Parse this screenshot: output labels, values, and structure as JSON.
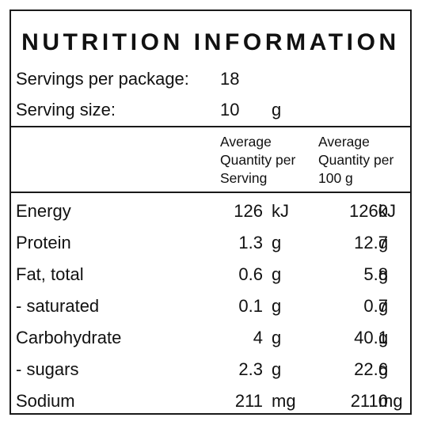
{
  "title": "NUTRITION INFORMATION",
  "servings": {
    "label": "Servings per package:",
    "value": "18"
  },
  "serving_size": {
    "label": "Serving size:",
    "value": "10",
    "unit": "g"
  },
  "columns": {
    "per_serving": [
      "Average",
      "Quantity per",
      "Serving"
    ],
    "per_100g": [
      "Average",
      "Quantity per",
      "100 g"
    ]
  },
  "rows": [
    {
      "label": "Energy",
      "serving": "126",
      "serving_unit": "kJ",
      "per100": "1260",
      "per100_unit": "kJ"
    },
    {
      "label": "Protein",
      "serving": "1.3",
      "serving_unit": "g",
      "per100": "12.7",
      "per100_unit": "g"
    },
    {
      "label": "Fat, total",
      "serving": "0.6",
      "serving_unit": "g",
      "per100": "5.8",
      "per100_unit": "g"
    },
    {
      "label": "- saturated",
      "serving": "0.1",
      "serving_unit": "g",
      "per100": "0.7",
      "per100_unit": "g"
    },
    {
      "label": "Carbohydrate",
      "serving": "4",
      "serving_unit": "g",
      "per100": "40.1",
      "per100_unit": "g"
    },
    {
      "label": "- sugars",
      "serving": "2.3",
      "serving_unit": "g",
      "per100": "22.6",
      "per100_unit": "g"
    },
    {
      "label": "Sodium",
      "serving": "211",
      "serving_unit": "mg",
      "per100": "2110",
      "per100_unit": "mg"
    }
  ]
}
